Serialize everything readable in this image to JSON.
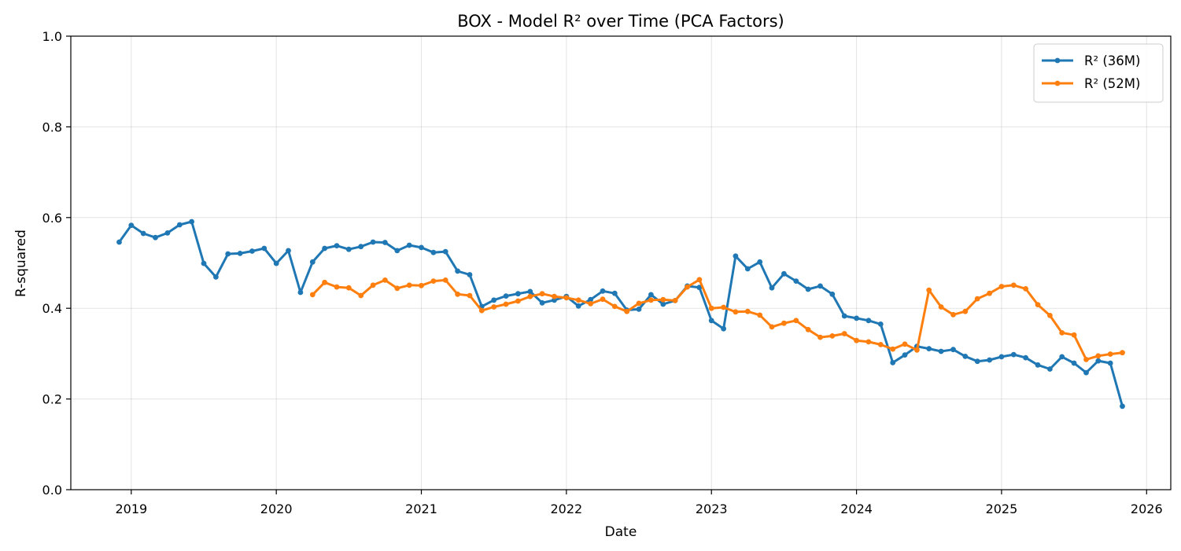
{
  "chart_data": {
    "type": "line",
    "title": "BOX - Model R² over Time (PCA Factors)",
    "xlabel": "Date",
    "ylabel": "R-squared",
    "xlim": [
      "2018-08-01",
      "2026-03-01"
    ],
    "ylim": [
      0,
      1
    ],
    "x_ticks": [
      "2019",
      "2020",
      "2021",
      "2022",
      "2023",
      "2024",
      "2025",
      "2026"
    ],
    "y_ticks": [
      "0.0",
      "0.2",
      "0.4",
      "0.6",
      "0.8",
      "1.0"
    ],
    "grid": true,
    "legend_position": "top-right",
    "series": [
      {
        "name": "R² (36M)",
        "color": "#1f77b4",
        "x": [
          "2018-12",
          "2019-01",
          "2019-02",
          "2019-03",
          "2019-04",
          "2019-05",
          "2019-06",
          "2019-07",
          "2019-08",
          "2019-09",
          "2019-10",
          "2019-11",
          "2019-12",
          "2020-01",
          "2020-02",
          "2020-03",
          "2020-04",
          "2020-05",
          "2020-06",
          "2020-07",
          "2020-08",
          "2020-09",
          "2020-10",
          "2020-11",
          "2020-12",
          "2021-01",
          "2021-02",
          "2021-03",
          "2021-04",
          "2021-05",
          "2021-06",
          "2021-07",
          "2021-08",
          "2021-09",
          "2021-10",
          "2021-11",
          "2021-12",
          "2022-01",
          "2022-02",
          "2022-03",
          "2022-04",
          "2022-05",
          "2022-06",
          "2022-07",
          "2022-08",
          "2022-09",
          "2022-10",
          "2022-11",
          "2022-12",
          "2023-01",
          "2023-02",
          "2023-03",
          "2023-04",
          "2023-05",
          "2023-06",
          "2023-07",
          "2023-08",
          "2023-09",
          "2023-10",
          "2023-11",
          "2023-12",
          "2024-01",
          "2024-02",
          "2024-03",
          "2024-04",
          "2024-05",
          "2024-06",
          "2024-07",
          "2024-08",
          "2024-09",
          "2024-10",
          "2024-11",
          "2024-12",
          "2025-01",
          "2025-02",
          "2025-03",
          "2025-04",
          "2025-05",
          "2025-06",
          "2025-07",
          "2025-08",
          "2025-09",
          "2025-10",
          "2025-11"
        ],
        "values": [
          0.546,
          0.583,
          0.565,
          0.556,
          0.566,
          0.584,
          0.591,
          0.499,
          0.469,
          0.52,
          0.521,
          0.526,
          0.532,
          0.499,
          0.527,
          0.435,
          0.502,
          0.532,
          0.538,
          0.53,
          0.536,
          0.546,
          0.545,
          0.527,
          0.539,
          0.534,
          0.523,
          0.525,
          0.482,
          0.474,
          0.404,
          0.418,
          0.427,
          0.432,
          0.437,
          0.412,
          0.418,
          0.426,
          0.405,
          0.419,
          0.438,
          0.433,
          0.396,
          0.398,
          0.43,
          0.409,
          0.417,
          0.449,
          0.446,
          0.373,
          0.355,
          0.515,
          0.487,
          0.502,
          0.445,
          0.476,
          0.46,
          0.442,
          0.449,
          0.431,
          0.383,
          0.378,
          0.373,
          0.365,
          0.28,
          0.297,
          0.316,
          0.311,
          0.305,
          0.309,
          0.294,
          0.283,
          0.286,
          0.293,
          0.298,
          0.291,
          0.275,
          0.266,
          0.293,
          0.279,
          0.258,
          0.284,
          0.279,
          0.184
        ]
      },
      {
        "name": "R² (52M)",
        "color": "#ff7f0e",
        "x": [
          "2020-04",
          "2020-05",
          "2020-06",
          "2020-07",
          "2020-08",
          "2020-09",
          "2020-10",
          "2020-11",
          "2020-12",
          "2021-01",
          "2021-02",
          "2021-03",
          "2021-04",
          "2021-05",
          "2021-06",
          "2021-07",
          "2021-08",
          "2021-09",
          "2021-10",
          "2021-11",
          "2021-12",
          "2022-01",
          "2022-02",
          "2022-03",
          "2022-04",
          "2022-05",
          "2022-06",
          "2022-07",
          "2022-08",
          "2022-09",
          "2022-10",
          "2022-11",
          "2022-12",
          "2023-01",
          "2023-02",
          "2023-03",
          "2023-04",
          "2023-05",
          "2023-06",
          "2023-07",
          "2023-08",
          "2023-09",
          "2023-10",
          "2023-11",
          "2023-12",
          "2024-01",
          "2024-02",
          "2024-03",
          "2024-04",
          "2024-05",
          "2024-06",
          "2024-07",
          "2024-08",
          "2024-09",
          "2024-10",
          "2024-11",
          "2024-12",
          "2025-01",
          "2025-02",
          "2025-03",
          "2025-04",
          "2025-05",
          "2025-06",
          "2025-07",
          "2025-08",
          "2025-09",
          "2025-10",
          "2025-11"
        ],
        "values": [
          0.43,
          0.457,
          0.447,
          0.445,
          0.428,
          0.451,
          0.462,
          0.444,
          0.451,
          0.45,
          0.46,
          0.462,
          0.431,
          0.428,
          0.395,
          0.403,
          0.409,
          0.416,
          0.426,
          0.432,
          0.426,
          0.423,
          0.418,
          0.41,
          0.42,
          0.404,
          0.393,
          0.411,
          0.418,
          0.419,
          0.417,
          0.447,
          0.463,
          0.4,
          0.402,
          0.392,
          0.393,
          0.385,
          0.359,
          0.367,
          0.373,
          0.353,
          0.336,
          0.339,
          0.344,
          0.329,
          0.326,
          0.32,
          0.31,
          0.321,
          0.308,
          0.44,
          0.403,
          0.386,
          0.393,
          0.421,
          0.433,
          0.448,
          0.451,
          0.443,
          0.408,
          0.384,
          0.346,
          0.341,
          0.287,
          0.295,
          0.299,
          0.302
        ]
      }
    ]
  }
}
